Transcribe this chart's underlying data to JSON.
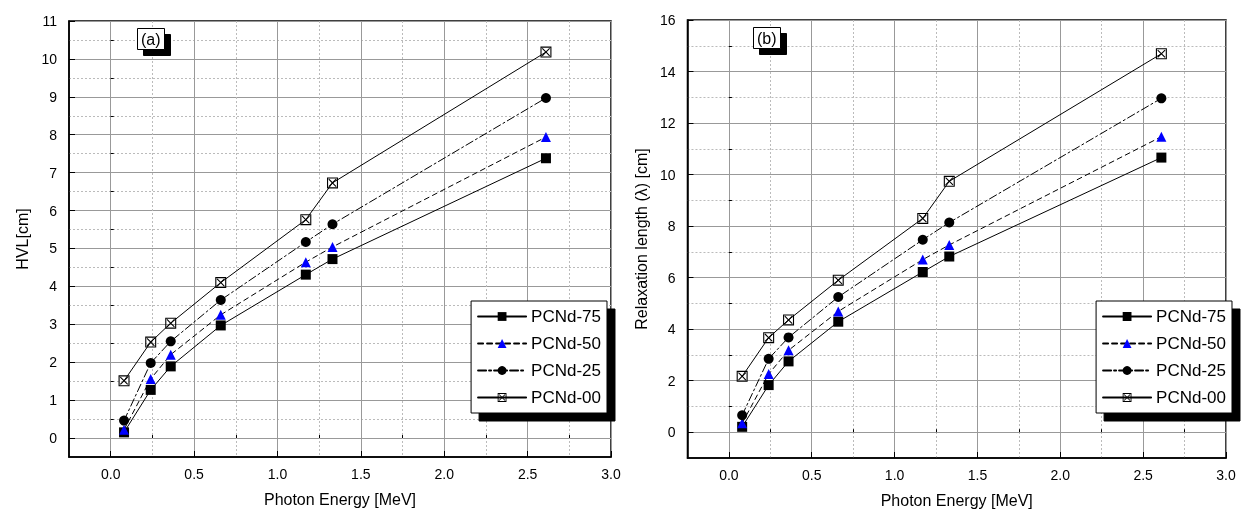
{
  "chart_data": [
    {
      "type": "line",
      "xlabel": "Photon Energy [MeV]",
      "ylabel": "HVL[cm]",
      "annotations": [
        "(a)"
      ],
      "legend": "bottom right",
      "grid": true,
      "xlim": [
        -0.25,
        3.0
      ],
      "xticks": [
        {
          "value": 0,
          "label": "0.0"
        },
        0.5,
        {
          "value": 1,
          "label": "1.0"
        },
        1.5,
        {
          "value": 2,
          "label": "2.0"
        },
        2.5,
        {
          "value": 3,
          "label": "3.0"
        }
      ],
      "ylim": [
        -0.5,
        11
      ],
      "yticks": [
        0,
        1,
        2,
        3,
        4,
        5,
        6,
        7,
        8,
        9,
        10,
        11
      ],
      "series": [
        {
          "name": "PCNd-75",
          "color": "#000000",
          "marker": "square",
          "line_style": "solid",
          "x": [
            0.08,
            0.24,
            0.36,
            0.66,
            1.17,
            1.33,
            2.61
          ],
          "values": [
            0.15,
            1.27,
            1.89,
            2.97,
            4.31,
            4.72,
            7.38
          ]
        },
        {
          "name": "PCNd-50",
          "color": "#0000ff",
          "marker": "triangle",
          "line_style": "dashed",
          "x": [
            0.08,
            0.24,
            0.36,
            0.66,
            1.17,
            1.33,
            2.61
          ],
          "values": [
            0.22,
            1.56,
            2.2,
            3.25,
            4.64,
            5.04,
            7.94
          ]
        },
        {
          "name": "PCNd-25",
          "color": "#000000",
          "marker": "circle",
          "line_style": "dashdot",
          "x": [
            0.08,
            0.24,
            0.36,
            0.66,
            1.17,
            1.33,
            2.61
          ],
          "values": [
            0.46,
            1.98,
            2.55,
            3.64,
            5.17,
            5.64,
            8.97
          ]
        },
        {
          "name": "PCNd-00",
          "color": "#000000",
          "marker": "cross",
          "line_style": "solid",
          "x": [
            0.08,
            0.24,
            0.36,
            0.66,
            1.17,
            1.33,
            2.61
          ],
          "values": [
            1.51,
            2.53,
            3.03,
            4.1,
            5.76,
            6.73,
            10.18
          ]
        }
      ]
    },
    {
      "type": "line",
      "xlabel": "Photon Energy [MeV]",
      "ylabel": "Relaxation length (λ) [cm]",
      "annotations": [
        "(b)"
      ],
      "legend": "bottom right",
      "grid": true,
      "xlim": [
        -0.25,
        3.0
      ],
      "xticks": [
        {
          "value": 0,
          "label": "0.0"
        },
        0.5,
        {
          "value": 1,
          "label": "1.0"
        },
        1.5,
        {
          "value": 2,
          "label": "2.0"
        },
        2.5,
        {
          "value": 3,
          "label": "3.0"
        }
      ],
      "ylim": [
        -1,
        16
      ],
      "yticks": [
        0,
        2,
        4,
        6,
        8,
        10,
        12,
        14,
        16
      ],
      "series": [
        {
          "name": "PCNd-75",
          "color": "#000000",
          "marker": "square",
          "line_style": "solid",
          "x": [
            0.08,
            0.24,
            0.36,
            0.66,
            1.17,
            1.33,
            2.61
          ],
          "values": [
            0.21,
            1.83,
            2.75,
            4.29,
            6.22,
            6.82,
            10.66
          ]
        },
        {
          "name": "PCNd-50",
          "color": "#0000ff",
          "marker": "triangle",
          "line_style": "dashed",
          "x": [
            0.08,
            0.24,
            0.36,
            0.66,
            1.17,
            1.33,
            2.61
          ],
          "values": [
            0.35,
            2.26,
            3.18,
            4.69,
            6.7,
            7.27,
            11.47
          ]
        },
        {
          "name": "PCNd-25",
          "color": "#000000",
          "marker": "circle",
          "line_style": "dashdot",
          "x": [
            0.08,
            0.24,
            0.36,
            0.66,
            1.17,
            1.33,
            2.61
          ],
          "values": [
            0.66,
            2.85,
            3.68,
            5.25,
            7.47,
            8.14,
            12.96
          ]
        },
        {
          "name": "PCNd-00",
          "color": "#000000",
          "marker": "cross",
          "line_style": "solid",
          "x": [
            0.08,
            0.24,
            0.36,
            0.66,
            1.17,
            1.33,
            2.61
          ],
          "values": [
            2.17,
            3.67,
            4.36,
            5.9,
            8.3,
            9.74,
            14.69
          ]
        }
      ]
    }
  ]
}
